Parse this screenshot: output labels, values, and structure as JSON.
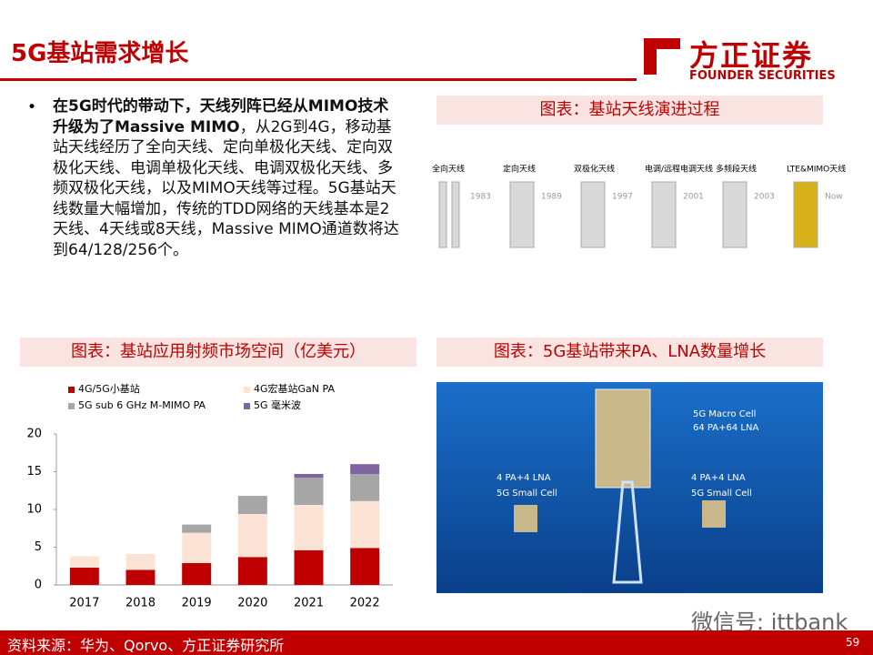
{
  "header": {
    "title": "5G基站需求增长",
    "logo_name": "方正证券",
    "logo_sub": "FOUNDER SECURITIES"
  },
  "bullet": {
    "bold": "在5G时代的带动下，天线列阵已经从MIMO技术升级为了Massive MIMO",
    "text": "，从2G到4G，移动基站天线经历了全向天线、定向单极化天线、定向双极化天线、电调单极化天线、电调双极化天线、多频双极化天线，以及MIMO天线等过程。5G基站天线数量大幅增加，传统的TDD网络的天线基本是2天线、4天线或8天线，Massive MIMO通道数将达到64/128/256个。"
  },
  "antenna_figure": {
    "caption": "图表：基站天线演进过程",
    "stages": [
      {
        "name": "全向天线",
        "year": "1983"
      },
      {
        "name": "定向天线",
        "year": "1989"
      },
      {
        "name": "双极化天线",
        "year": "1997"
      },
      {
        "name": "电调/远程电调天线",
        "year": "2001"
      },
      {
        "name": "多频段天线",
        "year": "2003"
      },
      {
        "name": "LTE&MIMO天线",
        "year": "Now"
      }
    ]
  },
  "network_figure": {
    "caption": "图表：5G基站带来PA、LNA数量增长",
    "macro": "5G Macro Cell",
    "macro_pa": "64 PA+64 LNA",
    "small_left": "5G Small Cell",
    "small_left_pa": "4 PA+4 LNA",
    "small_right": "5G Small Cell",
    "small_right_pa": "4 PA+4 LNA"
  },
  "chart_caption": "图表：基站应用射频市场空间（亿美元）",
  "chart_data": {
    "type": "stacked-bar",
    "categories": [
      "2017",
      "2018",
      "2019",
      "2020",
      "2021",
      "2022"
    ],
    "series": [
      {
        "name": "4G/5G小基站",
        "color": "#c00000",
        "values": [
          2.3,
          2.0,
          2.9,
          3.7,
          4.6,
          4.9
        ]
      },
      {
        "name": "4G宏基站GaN PA",
        "color": "#fbe3d6",
        "values": [
          1.5,
          2.1,
          4.0,
          5.7,
          6.0,
          6.2
        ]
      },
      {
        "name": "5G sub 6 GHz M-MIMO PA",
        "color": "#a6a6a6",
        "values": [
          0,
          0,
          1.1,
          2.4,
          3.6,
          3.6
        ]
      },
      {
        "name": "5G 毫米波",
        "color": "#8064a2",
        "values": [
          0,
          0,
          0,
          0,
          0.5,
          1.3
        ]
      }
    ],
    "ylim": [
      0,
      20
    ],
    "yticks": [
      0,
      5,
      10,
      15,
      20
    ]
  },
  "footer": {
    "source": "资料来源：华为、Qorvo、方正证券研究所",
    "page": "59",
    "watermark": "微信号: ittbank"
  }
}
